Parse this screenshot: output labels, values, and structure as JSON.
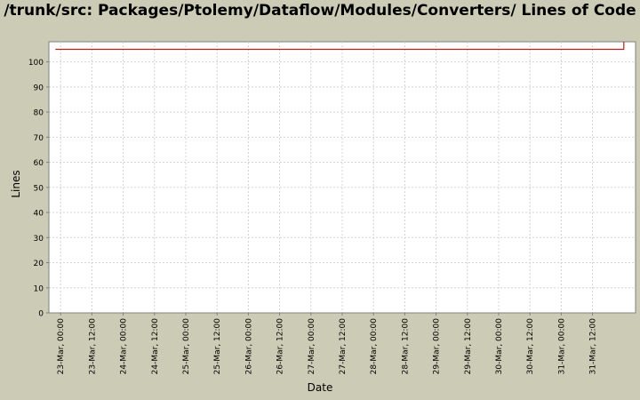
{
  "chart_data": {
    "type": "line",
    "title": "/trunk/src: Packages/Ptolemy/Dataflow/Modules/Converters/ Lines of Code",
    "xlabel": "Date",
    "ylabel": "Lines",
    "ylim": [
      0,
      108
    ],
    "yticks": [
      0,
      10,
      20,
      30,
      40,
      50,
      60,
      70,
      80,
      90,
      100
    ],
    "x_ticks": [
      "23-Mar, 00:00",
      "23-Mar, 12:00",
      "24-Mar, 00:00",
      "24-Mar, 12:00",
      "25-Mar, 00:00",
      "25-Mar, 12:00",
      "26-Mar, 00:00",
      "26-Mar, 12:00",
      "27-Mar, 00:00",
      "27-Mar, 12:00",
      "28-Mar, 00:00",
      "28-Mar, 12:00",
      "29-Mar, 00:00",
      "29-Mar, 12:00",
      "30-Mar, 00:00",
      "30-Mar, 12:00",
      "31-Mar, 00:00",
      "31-Mar, 12:00"
    ],
    "series": [
      {
        "color": "#b22222",
        "points": [
          {
            "x": "22-Mar, 22:00",
            "y": 105
          },
          {
            "x": "01-Apr, 00:00",
            "y": 105
          },
          {
            "x": "01-Apr, 00:00",
            "y": 108
          }
        ]
      }
    ],
    "grid": true,
    "plot_background": "#ffffff",
    "grid_color": "#d3d3d3"
  }
}
